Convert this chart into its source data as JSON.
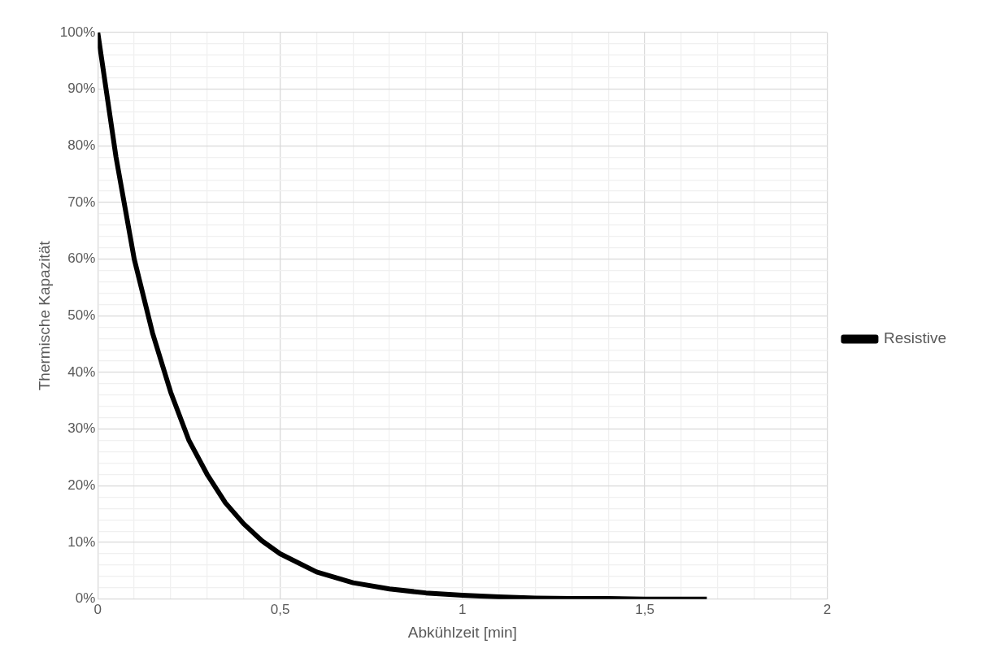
{
  "chart_data": {
    "type": "line",
    "xlabel": "Abkühlzeit [min]",
    "ylabel": "Thermische Kapazität",
    "x": [
      0,
      0.05,
      0.1,
      0.15,
      0.2,
      0.25,
      0.3,
      0.35,
      0.4,
      0.45,
      0.5,
      0.6,
      0.7,
      0.8,
      0.9,
      1.0,
      1.1,
      1.2,
      1.3,
      1.4,
      1.5,
      1.67
    ],
    "series": [
      {
        "name": "Resistive",
        "color": "#000000",
        "values": [
          100,
          78,
          60,
          47,
          36.5,
          28,
          22,
          17,
          13.3,
          10.3,
          8,
          4.8,
          2.9,
          1.8,
          1.1,
          0.7,
          0.4,
          0.2,
          0.1,
          0.1,
          0,
          0
        ]
      }
    ],
    "xlim": [
      0,
      2
    ],
    "xticks": [
      {
        "value": 0,
        "label": "0"
      },
      {
        "value": 0.1,
        "label": null
      },
      {
        "value": 0.2,
        "label": null
      },
      {
        "value": 0.3,
        "label": null
      },
      {
        "value": 0.4,
        "label": null
      },
      {
        "value": 0.5,
        "label": "0,5"
      },
      {
        "value": 0.6,
        "label": null
      },
      {
        "value": 0.7,
        "label": null
      },
      {
        "value": 0.8,
        "label": null
      },
      {
        "value": 0.9,
        "label": null
      },
      {
        "value": 1,
        "label": "1"
      },
      {
        "value": 1.1,
        "label": null
      },
      {
        "value": 1.2,
        "label": null
      },
      {
        "value": 1.3,
        "label": null
      },
      {
        "value": 1.4,
        "label": null
      },
      {
        "value": 1.5,
        "label": "1,5"
      },
      {
        "value": 1.6,
        "label": null
      },
      {
        "value": 1.7,
        "label": null
      },
      {
        "value": 1.8,
        "label": null
      },
      {
        "value": 1.9,
        "label": null
      },
      {
        "value": 2,
        "label": "2"
      }
    ],
    "ylim": [
      0,
      100
    ],
    "yticks": [
      {
        "value": 0,
        "label": "0%"
      },
      {
        "value": 2,
        "label": null
      },
      {
        "value": 4,
        "label": null
      },
      {
        "value": 6,
        "label": null
      },
      {
        "value": 8,
        "label": null
      },
      {
        "value": 10,
        "label": "10%"
      },
      {
        "value": 12,
        "label": null
      },
      {
        "value": 14,
        "label": null
      },
      {
        "value": 16,
        "label": null
      },
      {
        "value": 18,
        "label": null
      },
      {
        "value": 20,
        "label": "20%"
      },
      {
        "value": 22,
        "label": null
      },
      {
        "value": 24,
        "label": null
      },
      {
        "value": 26,
        "label": null
      },
      {
        "value": 28,
        "label": null
      },
      {
        "value": 30,
        "label": "30%"
      },
      {
        "value": 32,
        "label": null
      },
      {
        "value": 34,
        "label": null
      },
      {
        "value": 36,
        "label": null
      },
      {
        "value": 38,
        "label": null
      },
      {
        "value": 40,
        "label": "40%"
      },
      {
        "value": 42,
        "label": null
      },
      {
        "value": 44,
        "label": null
      },
      {
        "value": 46,
        "label": null
      },
      {
        "value": 48,
        "label": null
      },
      {
        "value": 50,
        "label": "50%"
      },
      {
        "value": 52,
        "label": null
      },
      {
        "value": 54,
        "label": null
      },
      {
        "value": 56,
        "label": null
      },
      {
        "value": 58,
        "label": null
      },
      {
        "value": 60,
        "label": "60%"
      },
      {
        "value": 62,
        "label": null
      },
      {
        "value": 64,
        "label": null
      },
      {
        "value": 66,
        "label": null
      },
      {
        "value": 68,
        "label": null
      },
      {
        "value": 70,
        "label": "70%"
      },
      {
        "value": 72,
        "label": null
      },
      {
        "value": 74,
        "label": null
      },
      {
        "value": 76,
        "label": null
      },
      {
        "value": 78,
        "label": null
      },
      {
        "value": 80,
        "label": "80%"
      },
      {
        "value": 82,
        "label": null
      },
      {
        "value": 84,
        "label": null
      },
      {
        "value": 86,
        "label": null
      },
      {
        "value": 88,
        "label": null
      },
      {
        "value": 90,
        "label": "90%"
      },
      {
        "value": 92,
        "label": null
      },
      {
        "value": 94,
        "label": null
      },
      {
        "value": 96,
        "label": null
      },
      {
        "value": 98,
        "label": null
      },
      {
        "value": 100,
        "label": "100%"
      }
    ],
    "grid": true,
    "legend": "right",
    "marker": "none",
    "line_style": "solid"
  }
}
